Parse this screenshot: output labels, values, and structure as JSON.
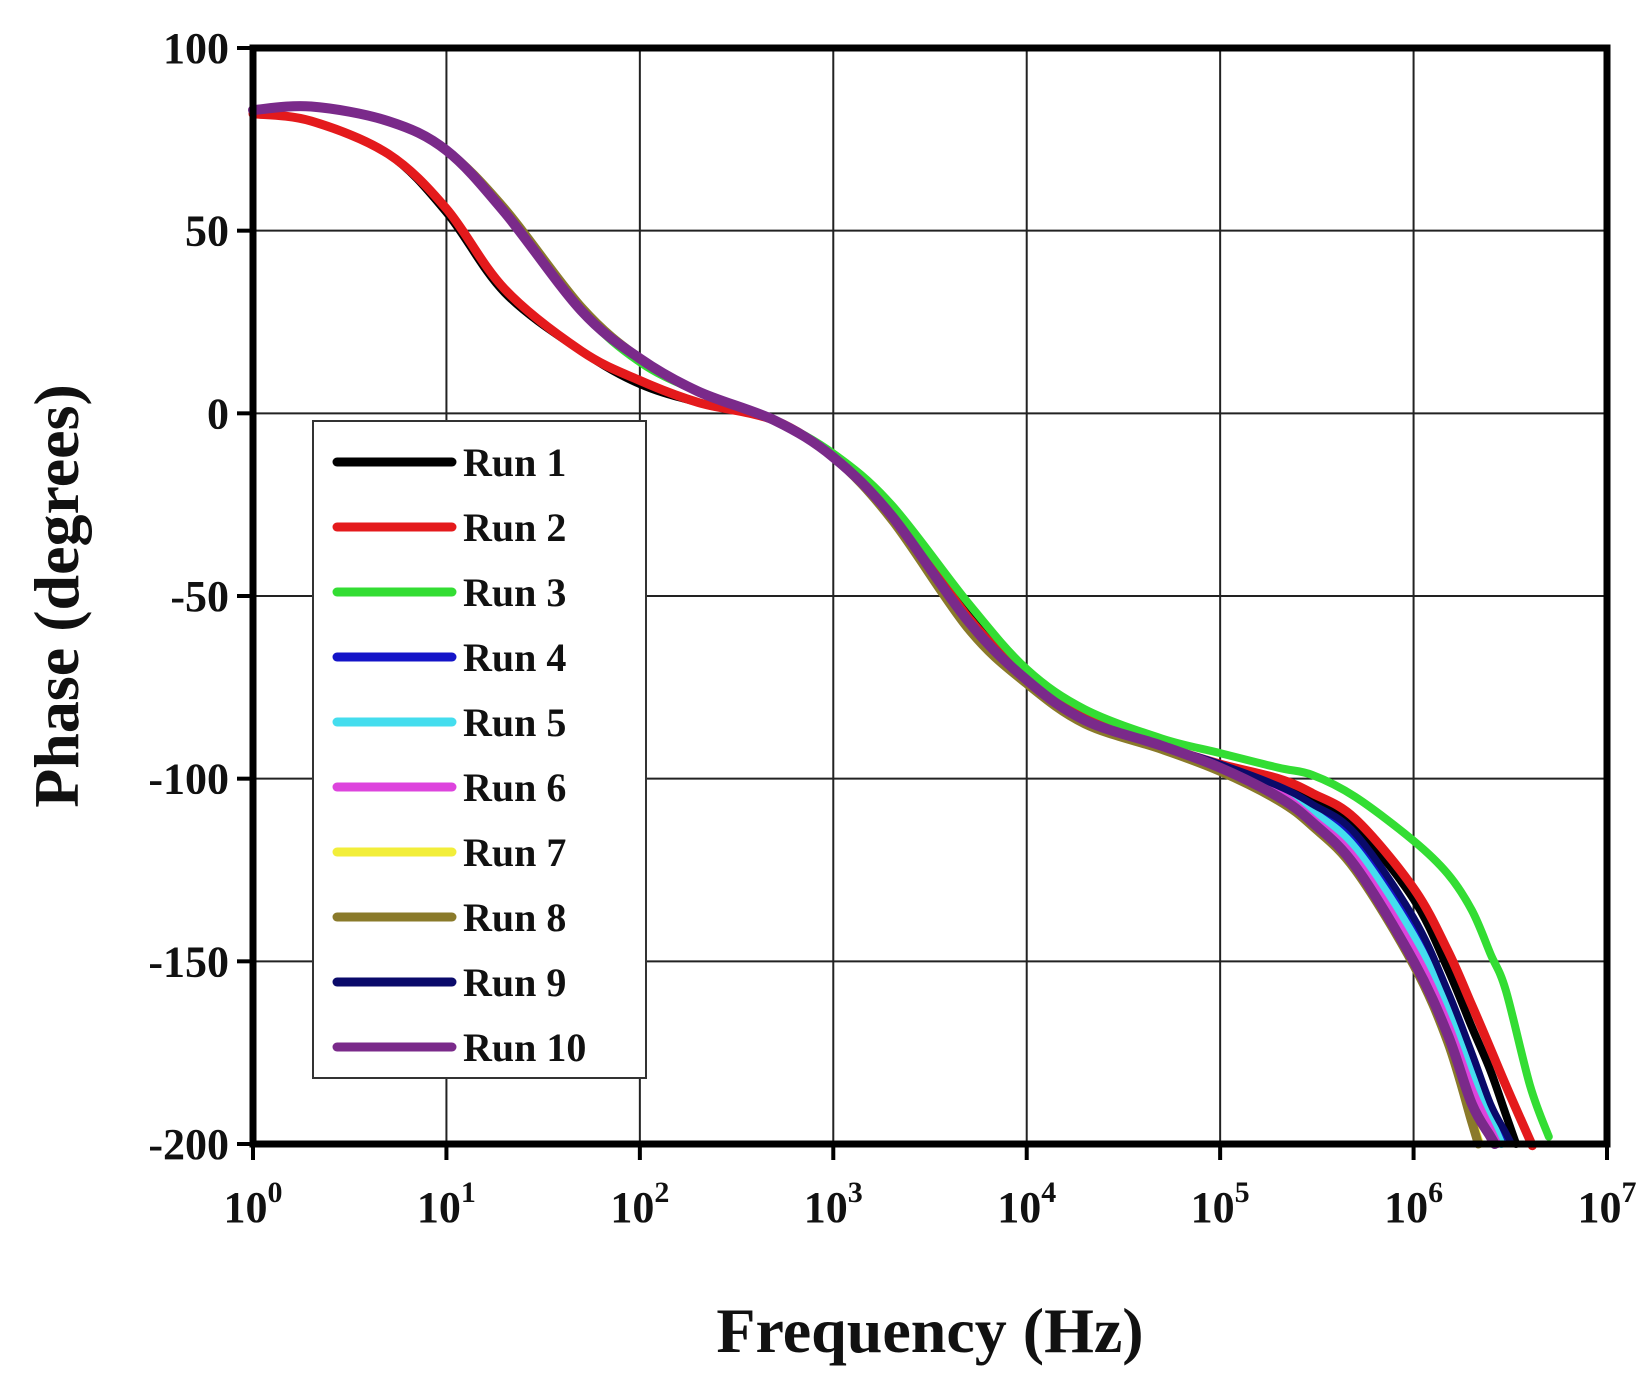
{
  "chart_data": {
    "type": "line",
    "title": "",
    "xlabel": "Frequency (Hz)",
    "ylabel": "Phase (degrees)",
    "xscale": "log",
    "xlim": [
      1,
      10000000
    ],
    "ylim": [
      -200,
      100
    ],
    "grid": true,
    "legend_position": "lower-left",
    "x_ticks": [
      {
        "value": 1,
        "base": "10",
        "exp": "0"
      },
      {
        "value": 10,
        "base": "10",
        "exp": "1"
      },
      {
        "value": 100,
        "base": "10",
        "exp": "2"
      },
      {
        "value": 1000,
        "base": "10",
        "exp": "3"
      },
      {
        "value": 10000,
        "base": "10",
        "exp": "4"
      },
      {
        "value": 100000,
        "base": "10",
        "exp": "5"
      },
      {
        "value": 1000000,
        "base": "10",
        "exp": "6"
      },
      {
        "value": 10000000,
        "base": "10",
        "exp": "7"
      }
    ],
    "y_ticks": [
      {
        "value": 100,
        "label": "100"
      },
      {
        "value": 50,
        "label": "50"
      },
      {
        "value": 0,
        "label": "0"
      },
      {
        "value": -50,
        "label": "-50"
      },
      {
        "value": -100,
        "label": "-100"
      },
      {
        "value": -150,
        "label": "-150"
      },
      {
        "value": -200,
        "label": "-200"
      }
    ],
    "x": [
      1,
      2,
      5,
      10,
      20,
      50,
      100,
      200,
      500,
      1000,
      2000,
      5000,
      10000,
      20000,
      50000,
      100000,
      200000,
      300000,
      500000,
      1000000,
      1500000,
      2000000,
      2500000,
      3000000,
      4000000,
      5000000
    ],
    "series": [
      {
        "name": "Run 1",
        "color": "#000000",
        "width": 8,
        "values": [
          82,
          80,
          71,
          55,
          33,
          17,
          8,
          3,
          -2,
          -12,
          -27,
          -55,
          -72,
          -83,
          -91,
          -96,
          -101,
          -105,
          -113,
          -133,
          -152,
          -168,
          -180,
          -192,
          null,
          null
        ]
      },
      {
        "name": "Run 2",
        "color": "#e41a1c",
        "width": 9,
        "values": [
          82,
          80,
          71,
          56,
          34,
          17,
          9,
          3,
          -2,
          -12,
          -27,
          -56,
          -72,
          -83,
          -91,
          -96,
          -100,
          -104,
          -111,
          -130,
          -147,
          -162,
          -174,
          -184,
          -199,
          null
        ]
      },
      {
        "name": "Run 3",
        "color": "#33dd33",
        "width": 8,
        "values": [
          83,
          84,
          80,
          72,
          55,
          28,
          14,
          6,
          -2,
          -11,
          -25,
          -52,
          -70,
          -81,
          -89,
          -93,
          -97,
          -99,
          -105,
          -117,
          -126,
          -136,
          -148,
          -158,
          -184,
          -198
        ]
      },
      {
        "name": "Run 4",
        "color": "#1414c8",
        "width": 7,
        "values": [
          83,
          84,
          80,
          72,
          55,
          28,
          15,
          6,
          -2,
          -12,
          -28,
          -57,
          -73,
          -84,
          -91,
          -96,
          -103,
          -108,
          -117,
          -140,
          -160,
          -178,
          -191,
          null,
          null,
          null
        ]
      },
      {
        "name": "Run 5",
        "color": "#44ddee",
        "width": 8,
        "values": [
          83,
          84,
          80,
          72,
          55,
          28,
          15,
          6,
          -2,
          -12,
          -28,
          -57,
          -73,
          -84,
          -91,
          -97,
          -103,
          -109,
          -119,
          -143,
          -163,
          -181,
          -193,
          null,
          null,
          null
        ]
      },
      {
        "name": "Run 6",
        "color": "#dd44dd",
        "width": 8,
        "values": [
          83,
          84,
          80,
          72,
          55,
          28,
          15,
          6,
          -2,
          -12,
          -28,
          -57,
          -73,
          -84,
          -91,
          -97,
          -104,
          -111,
          -122,
          -147,
          -167,
          -185,
          -196,
          null,
          null,
          null
        ]
      },
      {
        "name": "Run 7",
        "color": "#f2ee3a",
        "width": 8,
        "values": [
          83,
          84,
          80,
          72,
          55,
          28,
          15,
          6,
          -2,
          -12,
          -28,
          -58,
          -74,
          -85,
          -92,
          -98,
          -106,
          -113,
          -125,
          -151,
          -172,
          -193,
          null,
          null,
          null,
          null
        ]
      },
      {
        "name": "Run 8",
        "color": "#8a7a2a",
        "width": 9,
        "values": [
          83,
          84,
          80,
          72,
          56,
          29,
          15,
          6,
          -2,
          -12,
          -29,
          -59,
          -74,
          -85,
          -92,
          -98,
          -106,
          -113,
          -125,
          -151,
          -172,
          -194,
          null,
          null,
          null,
          null
        ]
      },
      {
        "name": "Run 9",
        "color": "#0a0a6a",
        "width": 7,
        "values": [
          83,
          84,
          80,
          72,
          55,
          28,
          15,
          6,
          -2,
          -12,
          -28,
          -57,
          -73,
          -84,
          -91,
          -96,
          -102,
          -107,
          -115,
          -138,
          -158,
          -175,
          -189,
          -197,
          null,
          null
        ]
      },
      {
        "name": "Run 10",
        "color": "#7a2a8a",
        "width": 10,
        "values": [
          83,
          84,
          80,
          72,
          55,
          28,
          15,
          6,
          -2,
          -12,
          -28,
          -57,
          -73,
          -84,
          -91,
          -97,
          -105,
          -112,
          -124,
          -150,
          -170,
          -189,
          -198,
          null,
          null,
          null
        ]
      }
    ]
  }
}
